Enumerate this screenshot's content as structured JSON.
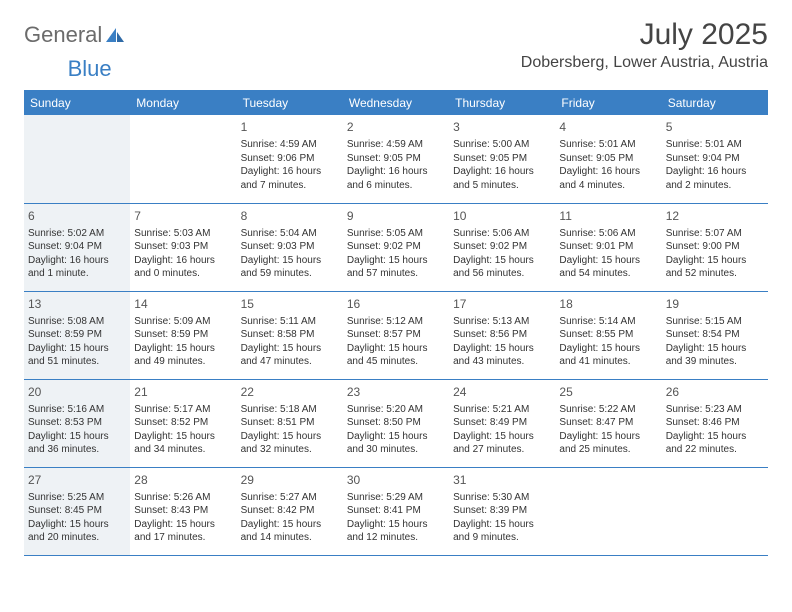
{
  "logo": {
    "word1": "General",
    "word2": "Blue"
  },
  "header": {
    "title": "July 2025",
    "location": "Dobersberg, Lower Austria, Austria"
  },
  "colors": {
    "accent": "#3a7fc4",
    "sunday_bg": "#eef2f5",
    "text": "#333333",
    "header_text": "#ffffff"
  },
  "daynames": [
    "Sunday",
    "Monday",
    "Tuesday",
    "Wednesday",
    "Thursday",
    "Friday",
    "Saturday"
  ],
  "weeks": [
    [
      null,
      null,
      {
        "d": "1",
        "sr": "Sunrise: 4:59 AM",
        "ss": "Sunset: 9:06 PM",
        "dl": "Daylight: 16 hours and 7 minutes."
      },
      {
        "d": "2",
        "sr": "Sunrise: 4:59 AM",
        "ss": "Sunset: 9:05 PM",
        "dl": "Daylight: 16 hours and 6 minutes."
      },
      {
        "d": "3",
        "sr": "Sunrise: 5:00 AM",
        "ss": "Sunset: 9:05 PM",
        "dl": "Daylight: 16 hours and 5 minutes."
      },
      {
        "d": "4",
        "sr": "Sunrise: 5:01 AM",
        "ss": "Sunset: 9:05 PM",
        "dl": "Daylight: 16 hours and 4 minutes."
      },
      {
        "d": "5",
        "sr": "Sunrise: 5:01 AM",
        "ss": "Sunset: 9:04 PM",
        "dl": "Daylight: 16 hours and 2 minutes."
      }
    ],
    [
      {
        "d": "6",
        "sr": "Sunrise: 5:02 AM",
        "ss": "Sunset: 9:04 PM",
        "dl": "Daylight: 16 hours and 1 minute."
      },
      {
        "d": "7",
        "sr": "Sunrise: 5:03 AM",
        "ss": "Sunset: 9:03 PM",
        "dl": "Daylight: 16 hours and 0 minutes."
      },
      {
        "d": "8",
        "sr": "Sunrise: 5:04 AM",
        "ss": "Sunset: 9:03 PM",
        "dl": "Daylight: 15 hours and 59 minutes."
      },
      {
        "d": "9",
        "sr": "Sunrise: 5:05 AM",
        "ss": "Sunset: 9:02 PM",
        "dl": "Daylight: 15 hours and 57 minutes."
      },
      {
        "d": "10",
        "sr": "Sunrise: 5:06 AM",
        "ss": "Sunset: 9:02 PM",
        "dl": "Daylight: 15 hours and 56 minutes."
      },
      {
        "d": "11",
        "sr": "Sunrise: 5:06 AM",
        "ss": "Sunset: 9:01 PM",
        "dl": "Daylight: 15 hours and 54 minutes."
      },
      {
        "d": "12",
        "sr": "Sunrise: 5:07 AM",
        "ss": "Sunset: 9:00 PM",
        "dl": "Daylight: 15 hours and 52 minutes."
      }
    ],
    [
      {
        "d": "13",
        "sr": "Sunrise: 5:08 AM",
        "ss": "Sunset: 8:59 PM",
        "dl": "Daylight: 15 hours and 51 minutes."
      },
      {
        "d": "14",
        "sr": "Sunrise: 5:09 AM",
        "ss": "Sunset: 8:59 PM",
        "dl": "Daylight: 15 hours and 49 minutes."
      },
      {
        "d": "15",
        "sr": "Sunrise: 5:11 AM",
        "ss": "Sunset: 8:58 PM",
        "dl": "Daylight: 15 hours and 47 minutes."
      },
      {
        "d": "16",
        "sr": "Sunrise: 5:12 AM",
        "ss": "Sunset: 8:57 PM",
        "dl": "Daylight: 15 hours and 45 minutes."
      },
      {
        "d": "17",
        "sr": "Sunrise: 5:13 AM",
        "ss": "Sunset: 8:56 PM",
        "dl": "Daylight: 15 hours and 43 minutes."
      },
      {
        "d": "18",
        "sr": "Sunrise: 5:14 AM",
        "ss": "Sunset: 8:55 PM",
        "dl": "Daylight: 15 hours and 41 minutes."
      },
      {
        "d": "19",
        "sr": "Sunrise: 5:15 AM",
        "ss": "Sunset: 8:54 PM",
        "dl": "Daylight: 15 hours and 39 minutes."
      }
    ],
    [
      {
        "d": "20",
        "sr": "Sunrise: 5:16 AM",
        "ss": "Sunset: 8:53 PM",
        "dl": "Daylight: 15 hours and 36 minutes."
      },
      {
        "d": "21",
        "sr": "Sunrise: 5:17 AM",
        "ss": "Sunset: 8:52 PM",
        "dl": "Daylight: 15 hours and 34 minutes."
      },
      {
        "d": "22",
        "sr": "Sunrise: 5:18 AM",
        "ss": "Sunset: 8:51 PM",
        "dl": "Daylight: 15 hours and 32 minutes."
      },
      {
        "d": "23",
        "sr": "Sunrise: 5:20 AM",
        "ss": "Sunset: 8:50 PM",
        "dl": "Daylight: 15 hours and 30 minutes."
      },
      {
        "d": "24",
        "sr": "Sunrise: 5:21 AM",
        "ss": "Sunset: 8:49 PM",
        "dl": "Daylight: 15 hours and 27 minutes."
      },
      {
        "d": "25",
        "sr": "Sunrise: 5:22 AM",
        "ss": "Sunset: 8:47 PM",
        "dl": "Daylight: 15 hours and 25 minutes."
      },
      {
        "d": "26",
        "sr": "Sunrise: 5:23 AM",
        "ss": "Sunset: 8:46 PM",
        "dl": "Daylight: 15 hours and 22 minutes."
      }
    ],
    [
      {
        "d": "27",
        "sr": "Sunrise: 5:25 AM",
        "ss": "Sunset: 8:45 PM",
        "dl": "Daylight: 15 hours and 20 minutes."
      },
      {
        "d": "28",
        "sr": "Sunrise: 5:26 AM",
        "ss": "Sunset: 8:43 PM",
        "dl": "Daylight: 15 hours and 17 minutes."
      },
      {
        "d": "29",
        "sr": "Sunrise: 5:27 AM",
        "ss": "Sunset: 8:42 PM",
        "dl": "Daylight: 15 hours and 14 minutes."
      },
      {
        "d": "30",
        "sr": "Sunrise: 5:29 AM",
        "ss": "Sunset: 8:41 PM",
        "dl": "Daylight: 15 hours and 12 minutes."
      },
      {
        "d": "31",
        "sr": "Sunrise: 5:30 AM",
        "ss": "Sunset: 8:39 PM",
        "dl": "Daylight: 15 hours and 9 minutes."
      },
      null,
      null
    ]
  ]
}
